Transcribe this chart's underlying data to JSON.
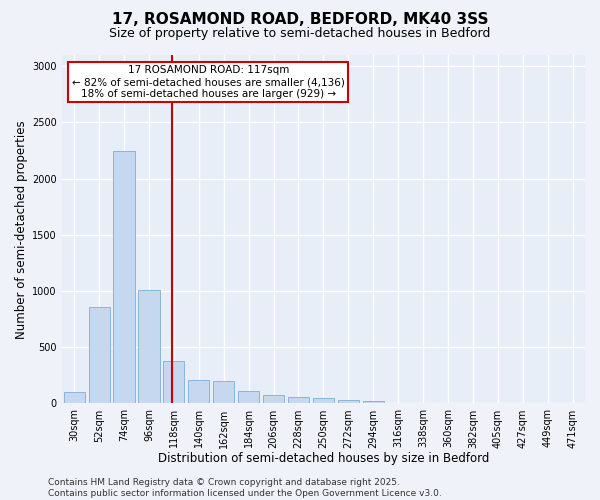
{
  "title_line1": "17, ROSAMOND ROAD, BEDFORD, MK40 3SS",
  "title_line2": "Size of property relative to semi-detached houses in Bedford",
  "xlabel": "Distribution of semi-detached houses by size in Bedford",
  "ylabel": "Number of semi-detached properties",
  "categories": [
    "30sqm",
    "52sqm",
    "74sqm",
    "96sqm",
    "118sqm",
    "140sqm",
    "162sqm",
    "184sqm",
    "206sqm",
    "228sqm",
    "250sqm",
    "272sqm",
    "294sqm",
    "316sqm",
    "338sqm",
    "360sqm",
    "382sqm",
    "405sqm",
    "427sqm",
    "449sqm",
    "471sqm"
  ],
  "values": [
    105,
    855,
    2250,
    1010,
    375,
    205,
    200,
    110,
    75,
    60,
    50,
    30,
    18,
    5,
    3,
    2,
    1,
    1,
    0,
    0,
    0
  ],
  "bar_color": "#c5d8f0",
  "bar_edge_color": "#7bafd4",
  "vline_color": "#cc0000",
  "annotation_title": "17 ROSAMOND ROAD: 117sqm",
  "annotation_line1": "← 82% of semi-detached houses are smaller (4,136)",
  "annotation_line2": "18% of semi-detached houses are larger (929) →",
  "annotation_box_color": "#cc0000",
  "ylim": [
    0,
    3100
  ],
  "yticks": [
    0,
    500,
    1000,
    1500,
    2000,
    2500,
    3000
  ],
  "footnote_line1": "Contains HM Land Registry data © Crown copyright and database right 2025.",
  "footnote_line2": "Contains public sector information licensed under the Open Government Licence v3.0.",
  "background_color": "#e8eef8",
  "grid_color": "#ffffff",
  "title_fontsize": 11,
  "subtitle_fontsize": 9,
  "axis_label_fontsize": 8.5,
  "tick_fontsize": 7,
  "annotation_fontsize": 7.5,
  "footnote_fontsize": 6.5
}
